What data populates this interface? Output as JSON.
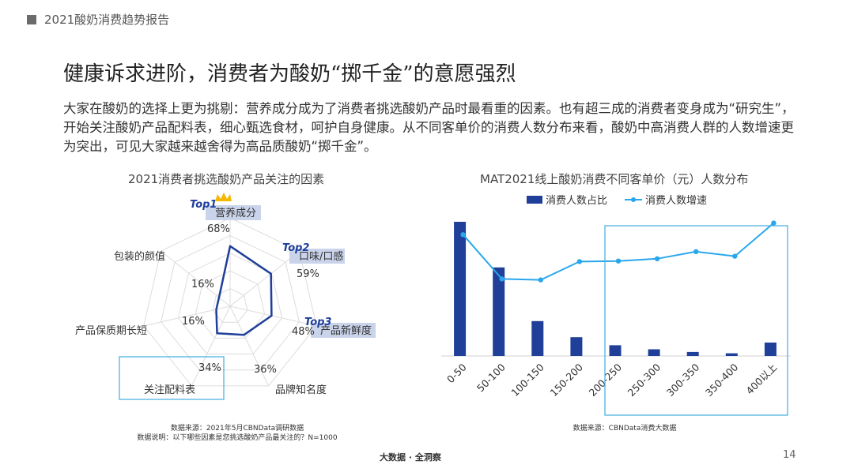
{
  "header": {
    "label": "2021酸奶消费趋势报告"
  },
  "title": "健康诉求进阶，消费者为酸奶“掷千金”的意愿强烈",
  "body": "大家在酸奶的选择上更为挑剔：营养成分成为了消费者挑选酸奶产品时最看重的因素。也有超三成的消费者变身成为“研究生”，开始关注酸奶产品配料表，细心甄选食材，呵护自身健康。从不同客单价的消费人数分布来看，酸奶中高消费人群的人数增速更为突出，可见大家越来越舍得为高品质酸奶“掷千金”。",
  "footer": {
    "brand": "大数据 · 全洞察",
    "page": "14"
  },
  "colors": {
    "bar": "#1f3f99",
    "line": "#2aa7ec",
    "radar": "#1f3f99",
    "highlight": "#4fb3e3",
    "tag": "#c9d3ea"
  },
  "chart_data": [
    {
      "type": "radar",
      "title": "2021消费者挑选酸奶产品关注的因素",
      "categories": [
        "营养成分",
        "口味/口感",
        "产品新鲜度",
        "品牌知名度",
        "关注配料表",
        "产品保质期长短",
        "包装的颜值"
      ],
      "values": [
        68,
        59,
        48,
        36,
        34,
        16,
        16
      ],
      "value_labels": [
        "68%",
        "59%",
        "48%",
        "36%",
        "34%",
        "16%",
        "16%"
      ],
      "tags": [
        "Top1",
        "Top2",
        "Top3"
      ],
      "note_lines": [
        "数据来源：2021年5月CBNData调研数据",
        "数据说明：以下哪些因素是您挑选酸奶产品最关注的？N=1000"
      ]
    },
    {
      "type": "bar+line",
      "title": "MAT2021线上酸奶消费不同客单价（元）人数分布",
      "categories": [
        "0-50",
        "50-100",
        "100-150",
        "150-200",
        "200-250",
        "250-300",
        "300-350",
        "350-400",
        "400以上"
      ],
      "series": [
        {
          "name": "消费人数占比",
          "type": "bar",
          "values": [
            100,
            66,
            26,
            14,
            8,
            5,
            3,
            2,
            10
          ]
        },
        {
          "name": "消费人数增速",
          "type": "line",
          "values": [
            63,
            40,
            39.5,
            49,
            49.3,
            50.5,
            54.2,
            51.8,
            69
          ]
        }
      ],
      "note_lines": [
        "数据来源：CBNData消费大数据"
      ]
    }
  ]
}
